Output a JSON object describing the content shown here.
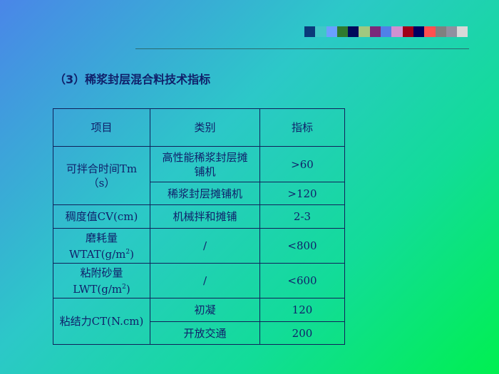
{
  "swatch_colors": [
    "#0a3a7a",
    "#40c8c8",
    "#6aa0ff",
    "#2e7a2e",
    "#000a5a",
    "#a0c880",
    "#7a2a7a",
    "#5080e8",
    "#d090d0",
    "#a00018",
    "#000060",
    "#ff5050",
    "#808080",
    "#9090a0",
    "#d8d8d8"
  ],
  "title": "（3）稀浆封层混合料技术指标",
  "table": {
    "headers": [
      "项目",
      "类别",
      "指标"
    ],
    "r1": {
      "item": "可拌合时间Tm（s）",
      "c1": "高性能稀浆封层摊铺机",
      "v1": ">60",
      "c2": "稀浆封层摊铺机",
      "v2": ">120"
    },
    "r2": {
      "item": "稠度值CV(cm)",
      "cat": "机械拌和摊铺",
      "val": "2-3"
    },
    "r3": {
      "item_a": "磨耗量",
      "item_b": "WTAT(g/m",
      "sup": "2",
      "close": ")",
      "cat": "/",
      "val": "<800"
    },
    "r4": {
      "item_a": "粘附砂量",
      "item_b": "LWT(g/m",
      "sup": "2",
      "close": ")",
      "cat": "/",
      "val": "<600"
    },
    "r5": {
      "item": "粘结力CT(N.cm)",
      "c1": "初凝",
      "v1": "120",
      "c2": "开放交通",
      "v2": "200"
    }
  }
}
